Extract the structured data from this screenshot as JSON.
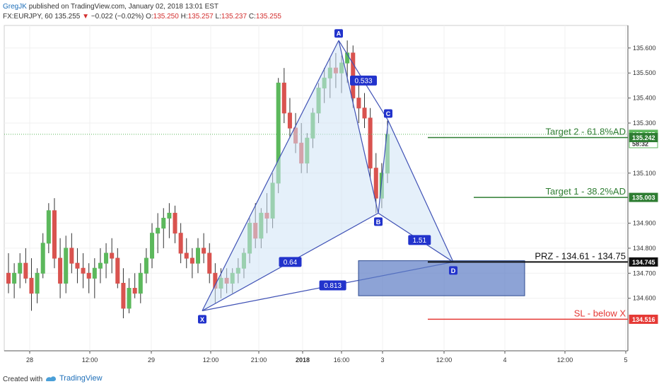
{
  "header": {
    "author": "GregJK",
    "published_text": "published on TradingView.com, January 02, 2018 13:01 EST",
    "symbol": "FX:EURJPY, 60",
    "last": "135.255",
    "change_arrow": "▼",
    "change": "−0.022 (−0.02%)",
    "o_label": "O:",
    "o_val": "135.250",
    "h_label": "H:",
    "h_val": "135.257",
    "l_label": "L:",
    "l_val": "135.237",
    "c_label": "C:",
    "c_val": "135.255"
  },
  "footer": {
    "created_with": "Created with",
    "brand": "TradingView"
  },
  "colors": {
    "bull": "#5cb85c",
    "bear": "#d9534f",
    "pattern_line": "#3f51b5",
    "pattern_fill": "#cfe3f5",
    "target_line": "#2e7d32",
    "sl_line": "#e53935",
    "prz_box": "#5c7cc4",
    "prz_line": "#111111"
  },
  "chart_data": {
    "type": "candlestick",
    "instrument": "FX:EURJPY",
    "timeframe": "60",
    "x_tick_labels": [
      "28",
      "12:00",
      "29",
      "12:00",
      "21:00",
      "2018",
      "16:00",
      "3",
      "12:00",
      "4",
      "12:00",
      "5"
    ],
    "y_tick_labels": [
      "135.600",
      "135.500",
      "135.400",
      "135.300",
      "135.100",
      "134.900",
      "134.800",
      "134.700",
      "134.600"
    ],
    "ylim": [
      134.39,
      135.69
    ],
    "price_tags": [
      {
        "value": "135.255",
        "note": "last price",
        "color": "#5cb85c"
      },
      {
        "value": "58:32",
        "note": "countdown",
        "color": "#ffffff"
      },
      {
        "value": "135.242",
        "note": "",
        "color": "#2e7d32"
      },
      {
        "value": "135.003",
        "note": "",
        "color": "#2e7d32"
      },
      {
        "value": "134.745",
        "note": "",
        "color": "#111111"
      },
      {
        "value": "134.516",
        "note": "",
        "color": "#e53935"
      }
    ],
    "pattern_points": [
      {
        "label": "X",
        "price": 134.55
      },
      {
        "label": "A",
        "price": 135.63
      },
      {
        "label": "B",
        "price": 134.94
      },
      {
        "label": "C",
        "price": 135.31
      },
      {
        "label": "D",
        "price": 134.745
      }
    ],
    "ratios": [
      "0.533",
      "1.51",
      "0.64",
      "0.813"
    ],
    "levels": [
      {
        "label": "Target 2 - 61.8%AD",
        "price": 135.242
      },
      {
        "label": "Target 1 - 38.2%AD",
        "price": 135.003
      },
      {
        "label": "PRZ - 134.61 - 134.75",
        "price": 134.745
      },
      {
        "label": "SL - below X",
        "price": 134.516
      }
    ],
    "prz_zone": [
      134.61,
      134.75
    ],
    "candles": [
      {
        "o": 134.7,
        "h": 134.78,
        "l": 134.62,
        "c": 134.66
      },
      {
        "o": 134.66,
        "h": 134.74,
        "l": 134.6,
        "c": 134.7
      },
      {
        "o": 134.7,
        "h": 134.78,
        "l": 134.64,
        "c": 134.74
      },
      {
        "o": 134.74,
        "h": 134.8,
        "l": 134.66,
        "c": 134.68
      },
      {
        "o": 134.68,
        "h": 134.76,
        "l": 134.55,
        "c": 134.62
      },
      {
        "o": 134.62,
        "h": 134.72,
        "l": 134.58,
        "c": 134.7
      },
      {
        "o": 134.7,
        "h": 134.86,
        "l": 134.68,
        "c": 134.82
      },
      {
        "o": 134.82,
        "h": 134.98,
        "l": 134.78,
        "c": 134.95
      },
      {
        "o": 134.95,
        "h": 135.0,
        "l": 134.72,
        "c": 134.76
      },
      {
        "o": 134.76,
        "h": 134.84,
        "l": 134.6,
        "c": 134.66
      },
      {
        "o": 134.66,
        "h": 134.85,
        "l": 134.62,
        "c": 134.8
      },
      {
        "o": 134.8,
        "h": 134.86,
        "l": 134.7,
        "c": 134.74
      },
      {
        "o": 134.74,
        "h": 134.8,
        "l": 134.66,
        "c": 134.72
      },
      {
        "o": 134.72,
        "h": 134.78,
        "l": 134.64,
        "c": 134.7
      },
      {
        "o": 134.7,
        "h": 134.74,
        "l": 134.62,
        "c": 134.68
      },
      {
        "o": 134.68,
        "h": 134.76,
        "l": 134.6,
        "c": 134.72
      },
      {
        "o": 134.72,
        "h": 134.8,
        "l": 134.66,
        "c": 134.74
      },
      {
        "o": 134.74,
        "h": 134.82,
        "l": 134.68,
        "c": 134.78
      },
      {
        "o": 134.78,
        "h": 134.84,
        "l": 134.7,
        "c": 134.76
      },
      {
        "o": 134.76,
        "h": 134.8,
        "l": 134.64,
        "c": 134.66
      },
      {
        "o": 134.66,
        "h": 134.72,
        "l": 134.52,
        "c": 134.56
      },
      {
        "o": 134.56,
        "h": 134.68,
        "l": 134.54,
        "c": 134.64
      },
      {
        "o": 134.64,
        "h": 134.7,
        "l": 134.6,
        "c": 134.62
      },
      {
        "o": 134.62,
        "h": 134.74,
        "l": 134.58,
        "c": 134.7
      },
      {
        "o": 134.7,
        "h": 134.8,
        "l": 134.66,
        "c": 134.76
      },
      {
        "o": 134.76,
        "h": 134.9,
        "l": 134.72,
        "c": 134.86
      },
      {
        "o": 134.86,
        "h": 134.94,
        "l": 134.78,
        "c": 134.88
      },
      {
        "o": 134.88,
        "h": 134.96,
        "l": 134.8,
        "c": 134.92
      },
      {
        "o": 134.92,
        "h": 134.98,
        "l": 134.84,
        "c": 134.94
      },
      {
        "o": 134.94,
        "h": 134.97,
        "l": 134.82,
        "c": 134.86
      },
      {
        "o": 134.86,
        "h": 134.9,
        "l": 134.74,
        "c": 134.78
      },
      {
        "o": 134.78,
        "h": 134.84,
        "l": 134.72,
        "c": 134.76
      },
      {
        "o": 134.76,
        "h": 134.8,
        "l": 134.68,
        "c": 134.74
      },
      {
        "o": 134.74,
        "h": 134.84,
        "l": 134.7,
        "c": 134.8
      },
      {
        "o": 134.8,
        "h": 134.86,
        "l": 134.74,
        "c": 134.78
      },
      {
        "o": 134.78,
        "h": 134.82,
        "l": 134.66,
        "c": 134.7
      },
      {
        "o": 134.7,
        "h": 134.74,
        "l": 134.58,
        "c": 134.64
      },
      {
        "o": 134.64,
        "h": 134.72,
        "l": 134.6,
        "c": 134.68
      },
      {
        "o": 134.68,
        "h": 134.72,
        "l": 134.62,
        "c": 134.66
      },
      {
        "o": 134.66,
        "h": 134.72,
        "l": 134.62,
        "c": 134.7
      },
      {
        "o": 134.7,
        "h": 134.76,
        "l": 134.66,
        "c": 134.72
      },
      {
        "o": 134.72,
        "h": 134.8,
        "l": 134.68,
        "c": 134.78
      },
      {
        "o": 134.78,
        "h": 134.92,
        "l": 134.74,
        "c": 134.9
      },
      {
        "o": 134.9,
        "h": 134.98,
        "l": 134.8,
        "c": 134.84
      },
      {
        "o": 134.84,
        "h": 134.96,
        "l": 134.8,
        "c": 134.94
      },
      {
        "o": 134.94,
        "h": 135.02,
        "l": 134.86,
        "c": 134.92
      },
      {
        "o": 134.92,
        "h": 135.1,
        "l": 134.88,
        "c": 135.06
      },
      {
        "o": 135.06,
        "h": 135.48,
        "l": 135.02,
        "c": 135.46
      },
      {
        "o": 135.46,
        "h": 135.52,
        "l": 135.3,
        "c": 135.34
      },
      {
        "o": 135.34,
        "h": 135.4,
        "l": 135.24,
        "c": 135.28
      },
      {
        "o": 135.28,
        "h": 135.34,
        "l": 135.18,
        "c": 135.22
      },
      {
        "o": 135.22,
        "h": 135.3,
        "l": 135.1,
        "c": 135.14
      },
      {
        "o": 135.14,
        "h": 135.26,
        "l": 135.1,
        "c": 135.24
      },
      {
        "o": 135.24,
        "h": 135.36,
        "l": 135.2,
        "c": 135.34
      },
      {
        "o": 135.34,
        "h": 135.46,
        "l": 135.3,
        "c": 135.44
      },
      {
        "o": 135.44,
        "h": 135.52,
        "l": 135.38,
        "c": 135.48
      },
      {
        "o": 135.48,
        "h": 135.56,
        "l": 135.4,
        "c": 135.52
      },
      {
        "o": 135.52,
        "h": 135.58,
        "l": 135.44,
        "c": 135.5
      },
      {
        "o": 135.5,
        "h": 135.57,
        "l": 135.42,
        "c": 135.54
      },
      {
        "o": 135.54,
        "h": 135.63,
        "l": 135.46,
        "c": 135.58
      },
      {
        "o": 135.58,
        "h": 135.61,
        "l": 135.36,
        "c": 135.4
      },
      {
        "o": 135.4,
        "h": 135.46,
        "l": 135.3,
        "c": 135.36
      },
      {
        "o": 135.36,
        "h": 135.42,
        "l": 135.28,
        "c": 135.32
      },
      {
        "o": 135.32,
        "h": 135.36,
        "l": 135.08,
        "c": 135.12
      },
      {
        "o": 135.12,
        "h": 135.18,
        "l": 134.94,
        "c": 135.0
      },
      {
        "o": 135.0,
        "h": 135.14,
        "l": 134.96,
        "c": 135.1
      },
      {
        "o": 135.1,
        "h": 135.31,
        "l": 135.06,
        "c": 135.255
      }
    ]
  }
}
